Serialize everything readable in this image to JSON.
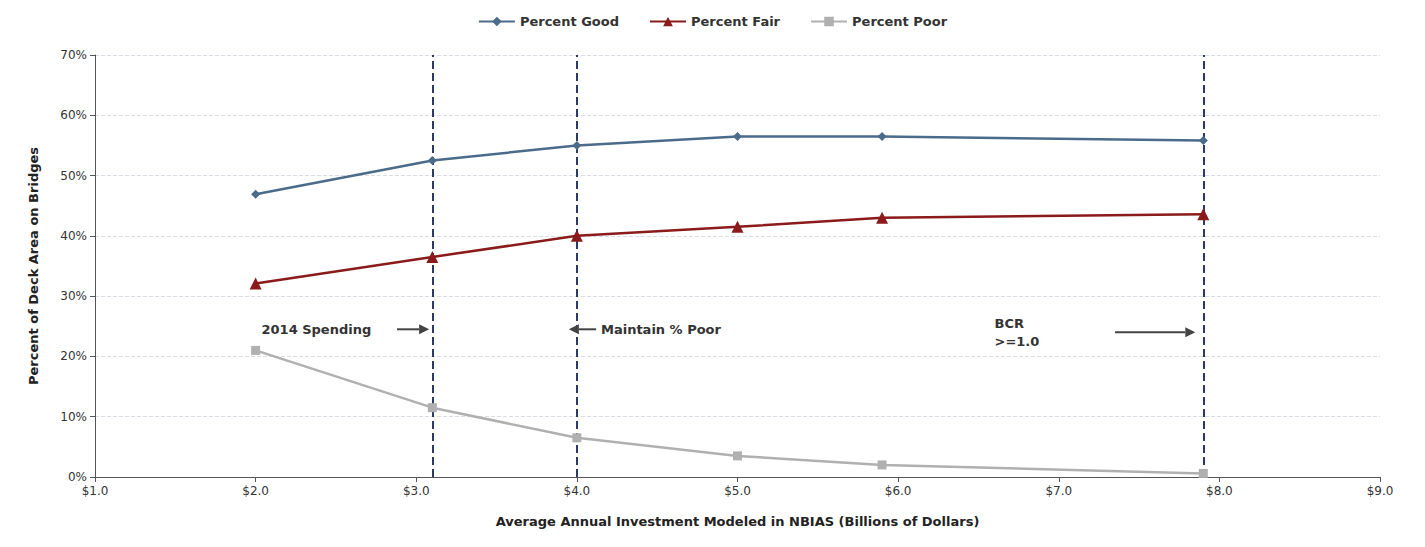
{
  "chart_data": {
    "type": "line",
    "x": [
      2.0,
      3.1,
      4.0,
      5.0,
      5.9,
      7.9
    ],
    "series": [
      {
        "name": "Percent Good",
        "color": "#4a6b8a",
        "marker": "diamond",
        "values": [
          46.9,
          52.5,
          55.0,
          56.5,
          56.5,
          55.8
        ]
      },
      {
        "name": "Percent Fair",
        "color": "#8b1a1a",
        "marker": "triangle",
        "values": [
          32.1,
          36.5,
          40.0,
          41.5,
          43.0,
          43.6
        ]
      },
      {
        "name": "Percent Poor",
        "color": "#b0b0b0",
        "marker": "square",
        "values": [
          21.0,
          11.5,
          6.5,
          3.5,
          2.0,
          0.6
        ]
      }
    ],
    "xlabel": "Average Annual Investment Modeled in NBIAS (Billions of Dollars)",
    "ylabel": "Percent of Deck Area on Bridges",
    "xlim": [
      1.0,
      9.0
    ],
    "xticks": [
      {
        "value": 1.0,
        "label": "$1.0"
      },
      {
        "value": 2.0,
        "label": "$2.0"
      },
      {
        "value": 3.0,
        "label": "$3.0"
      },
      {
        "value": 4.0,
        "label": "$4.0"
      },
      {
        "value": 5.0,
        "label": "$5.0"
      },
      {
        "value": 6.0,
        "label": "$6.0"
      },
      {
        "value": 7.0,
        "label": "$7.0"
      },
      {
        "value": 8.0,
        "label": "$8.0"
      },
      {
        "value": 9.0,
        "label": "$9.0"
      }
    ],
    "ylim": [
      0,
      70
    ],
    "yticks": [
      {
        "value": 0,
        "label": "0%"
      },
      {
        "value": 10,
        "label": "10%"
      },
      {
        "value": 20,
        "label": "20%"
      },
      {
        "value": 30,
        "label": "30%"
      },
      {
        "value": 40,
        "label": "40%"
      },
      {
        "value": 50,
        "label": "50%"
      },
      {
        "value": 60,
        "label": "60%"
      },
      {
        "value": 70,
        "label": "70%"
      }
    ],
    "grid": "y",
    "legend": "top",
    "vlines": {
      "values": [
        3.1,
        4.0,
        7.9
      ],
      "color": "#2b3a6b",
      "line_style": "dashed"
    },
    "annotations": [
      {
        "text": "2014 Spending",
        "x": 2.72,
        "y": 24.5,
        "align": "right"
      },
      {
        "text": "Maintain % Poor",
        "x": 4.15,
        "y": 24.5,
        "align": "left"
      },
      {
        "text": "BCR",
        "x": 6.6,
        "y": 25.5,
        "align": "left"
      },
      {
        "text": ">=1.0",
        "x": 6.6,
        "y": 22.5,
        "align": "left"
      }
    ],
    "arrows": [
      {
        "from": [
          2.88,
          24.5
        ],
        "to": [
          3.08,
          24.5
        ]
      },
      {
        "from": [
          4.12,
          24.5
        ],
        "to": [
          3.95,
          24.5
        ]
      },
      {
        "from": [
          7.35,
          24.0
        ],
        "to": [
          7.85,
          24.0
        ]
      }
    ]
  }
}
